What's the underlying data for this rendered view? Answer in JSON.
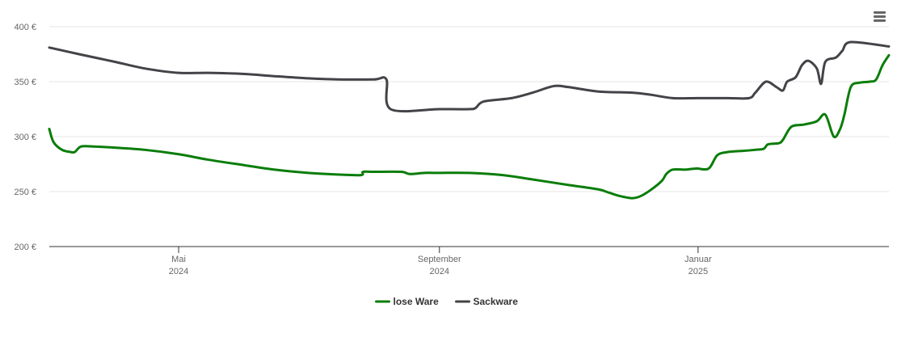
{
  "chart_data": {
    "type": "line",
    "title": "",
    "xlabel": "",
    "ylabel": "",
    "ylim": [
      200,
      400
    ],
    "xlim": [
      "2024-03-01",
      "2025-04-01"
    ],
    "y_ticks": [
      {
        "value": 400,
        "label": "400 €"
      },
      {
        "value": 350,
        "label": "350 €"
      },
      {
        "value": 300,
        "label": "300 €"
      },
      {
        "value": 250,
        "label": "250 €"
      },
      {
        "value": 200,
        "label": "200 €"
      }
    ],
    "x_ticks": [
      {
        "date": "2024-05-01",
        "line1": "Mai",
        "line2": "2024"
      },
      {
        "date": "2024-09-01",
        "line1": "September",
        "line2": "2024"
      },
      {
        "date": "2025-01-01",
        "line1": "Januar",
        "line2": "2025"
      }
    ],
    "grid": true,
    "legend_position": "bottom-center",
    "series": [
      {
        "name": "lose Ware",
        "color": "#0a7d0a",
        "points": [
          [
            "2024-03-01",
            307
          ],
          [
            "2024-03-03",
            295
          ],
          [
            "2024-03-07",
            288
          ],
          [
            "2024-03-11",
            286
          ],
          [
            "2024-03-13",
            286
          ],
          [
            "2024-03-16",
            291
          ],
          [
            "2024-03-22",
            291
          ],
          [
            "2024-04-01",
            290
          ],
          [
            "2024-04-15",
            288
          ],
          [
            "2024-05-01",
            284
          ],
          [
            "2024-05-15",
            279
          ],
          [
            "2024-06-01",
            274
          ],
          [
            "2024-06-15",
            270
          ],
          [
            "2024-07-01",
            267
          ],
          [
            "2024-07-15",
            265.5
          ],
          [
            "2024-07-26",
            265
          ],
          [
            "2024-07-27",
            268
          ],
          [
            "2024-08-01",
            268
          ],
          [
            "2024-08-14",
            268
          ],
          [
            "2024-08-18",
            266
          ],
          [
            "2024-08-25",
            267
          ],
          [
            "2024-09-01",
            267
          ],
          [
            "2024-09-15",
            267
          ],
          [
            "2024-10-01",
            265
          ],
          [
            "2024-10-15",
            261
          ],
          [
            "2024-11-01",
            256
          ],
          [
            "2024-11-15",
            252
          ],
          [
            "2024-11-20",
            249
          ],
          [
            "2024-11-25",
            246
          ],
          [
            "2024-12-01",
            244
          ],
          [
            "2024-12-05",
            246
          ],
          [
            "2024-12-10",
            252
          ],
          [
            "2024-12-15",
            260
          ],
          [
            "2024-12-17",
            266
          ],
          [
            "2024-12-20",
            270
          ],
          [
            "2024-12-26",
            270
          ],
          [
            "2024-12-31",
            271
          ],
          [
            "2025-01-06",
            271
          ],
          [
            "2025-01-10",
            283
          ],
          [
            "2025-01-15",
            286
          ],
          [
            "2025-01-22",
            287
          ],
          [
            "2025-01-28",
            288
          ],
          [
            "2025-02-01",
            289
          ],
          [
            "2025-02-03",
            293
          ],
          [
            "2025-02-08",
            294
          ],
          [
            "2025-02-10",
            297
          ],
          [
            "2025-02-14",
            309
          ],
          [
            "2025-02-20",
            311
          ],
          [
            "2025-02-26",
            314
          ],
          [
            "2025-03-02",
            320
          ],
          [
            "2025-03-06",
            300
          ],
          [
            "2025-03-09",
            307
          ],
          [
            "2025-03-11",
            320
          ],
          [
            "2025-03-14",
            345
          ],
          [
            "2025-03-18",
            349
          ],
          [
            "2025-03-23",
            350
          ],
          [
            "2025-03-26",
            352
          ],
          [
            "2025-03-29",
            365
          ],
          [
            "2025-04-01",
            374
          ]
        ]
      },
      {
        "name": "Sackware",
        "color": "#434348",
        "points": [
          [
            "2024-03-01",
            381
          ],
          [
            "2024-03-15",
            375
          ],
          [
            "2024-04-01",
            368
          ],
          [
            "2024-04-15",
            362
          ],
          [
            "2024-05-01",
            358
          ],
          [
            "2024-05-15",
            358
          ],
          [
            "2024-06-01",
            357
          ],
          [
            "2024-06-15",
            355
          ],
          [
            "2024-07-01",
            353
          ],
          [
            "2024-07-15",
            352
          ],
          [
            "2024-08-01",
            352
          ],
          [
            "2024-08-07",
            352
          ],
          [
            "2024-08-09",
            325
          ],
          [
            "2024-09-01",
            325
          ],
          [
            "2024-09-15",
            325
          ],
          [
            "2024-09-18",
            326
          ],
          [
            "2024-09-22",
            332
          ],
          [
            "2024-10-05",
            335
          ],
          [
            "2024-10-15",
            340
          ],
          [
            "2024-10-25",
            346
          ],
          [
            "2024-11-01",
            345
          ],
          [
            "2024-11-15",
            341
          ],
          [
            "2024-12-01",
            340
          ],
          [
            "2024-12-10",
            338
          ],
          [
            "2024-12-20",
            335
          ],
          [
            "2025-01-01",
            335
          ],
          [
            "2025-01-15",
            335
          ],
          [
            "2025-01-25",
            335
          ],
          [
            "2025-01-28",
            340
          ],
          [
            "2025-02-02",
            350
          ],
          [
            "2025-02-07",
            345
          ],
          [
            "2025-02-10",
            342
          ],
          [
            "2025-02-12",
            350
          ],
          [
            "2025-02-16",
            354
          ],
          [
            "2025-02-19",
            365
          ],
          [
            "2025-02-22",
            369
          ],
          [
            "2025-02-26",
            362
          ],
          [
            "2025-02-28",
            348
          ],
          [
            "2025-03-02",
            368
          ],
          [
            "2025-03-07",
            372
          ],
          [
            "2025-03-10",
            378
          ],
          [
            "2025-03-14",
            386
          ],
          [
            "2025-04-01",
            382
          ]
        ]
      }
    ]
  },
  "menu": {
    "icon": "hamburger-menu-icon"
  }
}
